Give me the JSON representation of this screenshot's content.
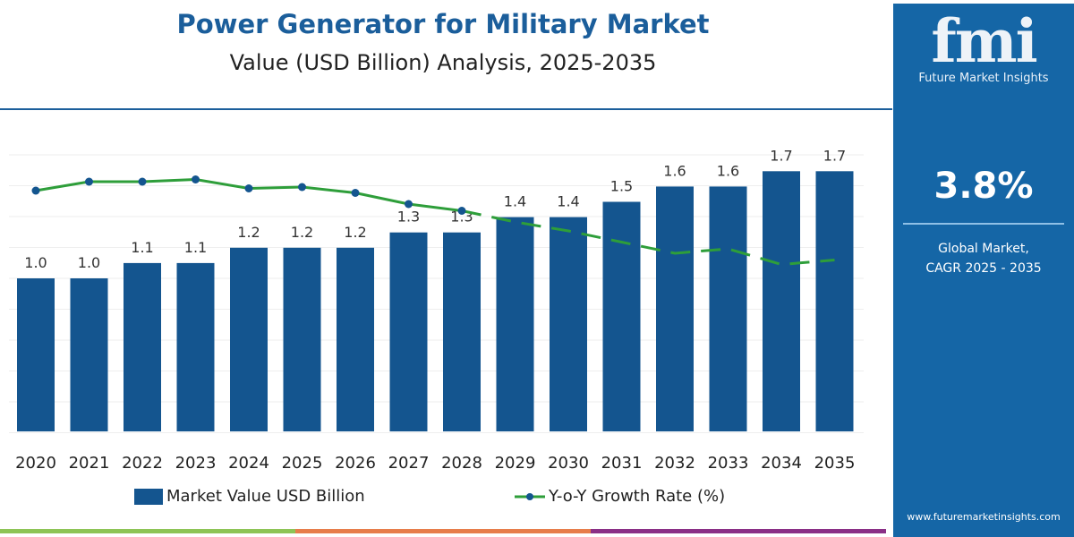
{
  "title": "Power Generator for Military Market",
  "subtitle": "Value (USD Billion) Analysis, 2025-2035",
  "sidebar": {
    "logo_text": "fmi",
    "logo_subtext": "Future Market Insights",
    "cagr_value": "3.8%",
    "cagr_label_line1": "Global Market,",
    "cagr_label_line2": "CAGR 2025 - 2035",
    "website": "www.futuremarketinsights.com",
    "background_color": "#1566a6"
  },
  "legend": {
    "bar_label": "Market Value USD Billion",
    "line_label": "Y-o-Y Growth Rate (%)"
  },
  "colors": {
    "bar": "#14558f",
    "line": "#2e9e3a",
    "marker": "#14558f",
    "strip": [
      "#8dc456",
      "#e77d4b",
      "#8a2f86"
    ]
  },
  "chart_data": {
    "type": "bar+line",
    "categories": [
      "2020",
      "2021",
      "2022",
      "2023",
      "2024",
      "2025",
      "2026",
      "2027",
      "2028",
      "2029",
      "2030",
      "2031",
      "2032",
      "2033",
      "2034",
      "2035"
    ],
    "series": [
      {
        "name": "Market Value USD Billion",
        "type": "bar",
        "values": [
          1.0,
          1.0,
          1.1,
          1.1,
          1.2,
          1.2,
          1.2,
          1.3,
          1.3,
          1.4,
          1.4,
          1.5,
          1.6,
          1.6,
          1.7,
          1.7
        ],
        "labels": [
          "1.0",
          "1.0",
          "1.1",
          "1.1",
          "1.2",
          "1.2",
          "1.2",
          "1.3",
          "1.3",
          "1.4",
          "1.4",
          "1.5",
          "1.6",
          "1.6",
          "1.7",
          "1.7"
        ]
      },
      {
        "name": "Y-o-Y Growth Rate (%)",
        "type": "line",
        "values": [
          4.0,
          4.2,
          4.2,
          4.25,
          4.05,
          4.08,
          3.95,
          3.7,
          3.55,
          3.3,
          3.1,
          2.85,
          2.6,
          2.7,
          2.35,
          2.45
        ],
        "solid_until": "2028",
        "dashed_after": "2028"
      }
    ],
    "bar_ylim": [
      0,
      1.8
    ],
    "grid": true,
    "legend_position": "bottom"
  }
}
